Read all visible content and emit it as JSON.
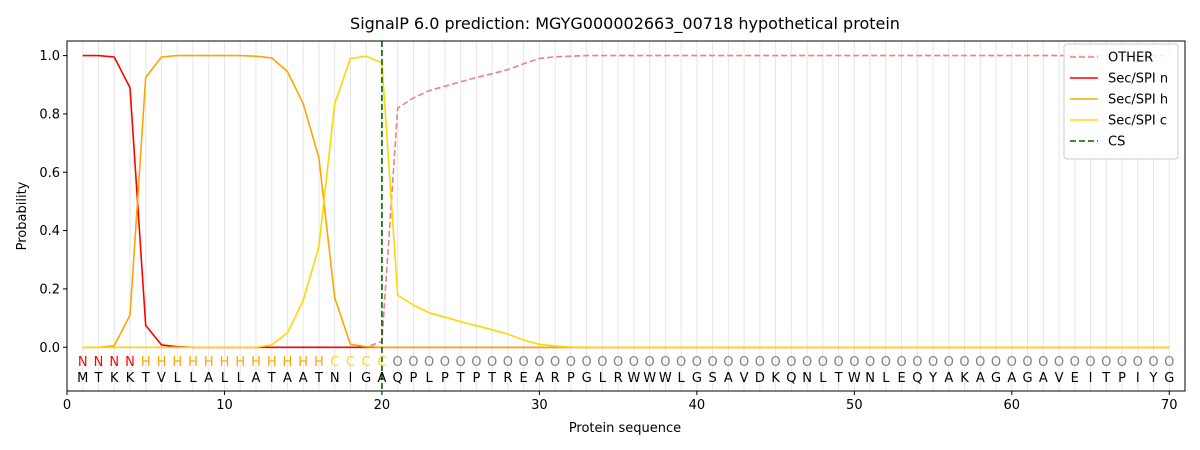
{
  "chart_data": {
    "type": "line",
    "title": "SignalP 6.0 prediction: MGYG000002663_00718 hypothetical protein",
    "xlabel": "Protein sequence",
    "ylabel": "Probability",
    "xlim": [
      0,
      71
    ],
    "ylim": [
      -0.15,
      1.05
    ],
    "xticks": [
      0,
      10,
      20,
      30,
      40,
      50,
      60,
      70
    ],
    "yticks": [
      0.0,
      0.2,
      0.4,
      0.6,
      0.8,
      1.0
    ],
    "grid": "vertical lines at each residue",
    "legend_position": "top-right",
    "sequence": [
      "M",
      "T",
      "K",
      "K",
      "T",
      "V",
      "L",
      "L",
      "A",
      "L",
      "L",
      "A",
      "T",
      "A",
      "A",
      "T",
      "N",
      "I",
      "G",
      "A",
      "Q",
      "P",
      "L",
      "P",
      "T",
      "P",
      "T",
      "R",
      "E",
      "A",
      "R",
      "P",
      "G",
      "L",
      "R",
      "W",
      "W",
      "W",
      "L",
      "G",
      "S",
      "A",
      "V",
      "D",
      "K",
      "Q",
      "N",
      "L",
      "T",
      "W",
      "N",
      "L",
      "E",
      "Q",
      "Y",
      "A",
      "K",
      "A",
      "G",
      "A",
      "G",
      "A",
      "V",
      "E",
      "I",
      "T",
      "P",
      "I",
      "Y",
      "G"
    ],
    "annotation": [
      "N",
      "N",
      "N",
      "N",
      "H",
      "H",
      "H",
      "H",
      "H",
      "H",
      "H",
      "H",
      "H",
      "H",
      "H",
      "H",
      "C",
      "C",
      "C",
      "C",
      "O",
      "O",
      "O",
      "O",
      "O",
      "O",
      "O",
      "O",
      "O",
      "O",
      "O",
      "O",
      "O",
      "O",
      "O",
      "O",
      "O",
      "O",
      "O",
      "O",
      "O",
      "O",
      "O",
      "O",
      "O",
      "O",
      "O",
      "O",
      "O",
      "O",
      "O",
      "O",
      "O",
      "O",
      "O",
      "O",
      "O",
      "O",
      "O",
      "O",
      "O",
      "O",
      "O",
      "O",
      "O",
      "O",
      "O",
      "O",
      "O",
      "O"
    ],
    "annotation_colors": {
      "N": "#ff0000",
      "H": "#ffa500",
      "C": "#ffd700",
      "O": "#808080"
    },
    "cleavage_site": 20,
    "series": [
      {
        "name": "OTHER",
        "color": "#f08080",
        "dash": "dashed",
        "values": [
          0,
          0,
          0,
          0,
          0,
          0,
          0,
          0,
          0,
          0,
          0,
          0,
          0,
          0,
          0,
          0,
          0,
          0,
          0,
          0.02,
          0.82,
          0.855,
          0.88,
          0.895,
          0.91,
          0.925,
          0.938,
          0.952,
          0.972,
          0.99,
          0.996,
          0.998,
          1,
          1,
          1,
          1,
          1,
          1,
          1,
          1,
          1,
          1,
          1,
          1,
          1,
          1,
          1,
          1,
          1,
          1,
          1,
          1,
          1,
          1,
          1,
          1,
          1,
          1,
          1,
          1,
          1,
          1,
          1,
          1,
          1,
          1,
          1,
          1,
          1,
          1
        ]
      },
      {
        "name": "Sec/SPI n",
        "color": "#ff0000",
        "dash": "solid",
        "values": [
          1.0,
          1.0,
          0.995,
          0.89,
          0.075,
          0.008,
          0.002,
          0,
          0,
          0,
          0,
          0,
          0,
          0,
          0,
          0,
          0,
          0,
          0,
          0,
          0,
          0,
          0,
          0,
          0,
          0,
          0,
          0,
          0,
          0,
          0,
          0,
          0,
          0,
          0,
          0,
          0,
          0,
          0,
          0,
          0,
          0,
          0,
          0,
          0,
          0,
          0,
          0,
          0,
          0,
          0,
          0,
          0,
          0,
          0,
          0,
          0,
          0,
          0,
          0,
          0,
          0,
          0,
          0,
          0,
          0,
          0,
          0,
          0,
          0
        ]
      },
      {
        "name": "Sec/SPI h",
        "color": "#ffa500",
        "dash": "solid",
        "values": [
          0,
          0,
          0.005,
          0.11,
          0.925,
          0.995,
          1.0,
          1.0,
          1.0,
          1.0,
          1.0,
          0.998,
          0.992,
          0.945,
          0.835,
          0.65,
          0.17,
          0.01,
          0.002,
          0,
          0,
          0,
          0,
          0,
          0,
          0,
          0,
          0,
          0,
          0,
          0,
          0,
          0,
          0,
          0,
          0,
          0,
          0,
          0,
          0,
          0,
          0,
          0,
          0,
          0,
          0,
          0,
          0,
          0,
          0,
          0,
          0,
          0,
          0,
          0,
          0,
          0,
          0,
          0,
          0,
          0,
          0,
          0,
          0,
          0,
          0,
          0,
          0,
          0,
          0
        ]
      },
      {
        "name": "Sec/SPI c",
        "color": "#ffd700",
        "dash": "solid",
        "values": [
          0,
          0,
          0,
          0,
          0,
          0,
          0,
          0,
          0,
          0,
          0,
          0,
          0.008,
          0.05,
          0.16,
          0.345,
          0.835,
          0.99,
          0.998,
          0.975,
          0.178,
          0.145,
          0.118,
          0.103,
          0.088,
          0.074,
          0.06,
          0.045,
          0.025,
          0.01,
          0.004,
          0.001,
          0,
          0,
          0,
          0,
          0,
          0,
          0,
          0,
          0,
          0,
          0,
          0,
          0,
          0,
          0,
          0,
          0,
          0,
          0,
          0,
          0,
          0,
          0,
          0,
          0,
          0,
          0,
          0,
          0,
          0,
          0,
          0,
          0,
          0,
          0,
          0,
          0,
          0
        ]
      },
      {
        "name": "CS",
        "color": "#006400",
        "dash": "dashed",
        "values": []
      }
    ]
  }
}
